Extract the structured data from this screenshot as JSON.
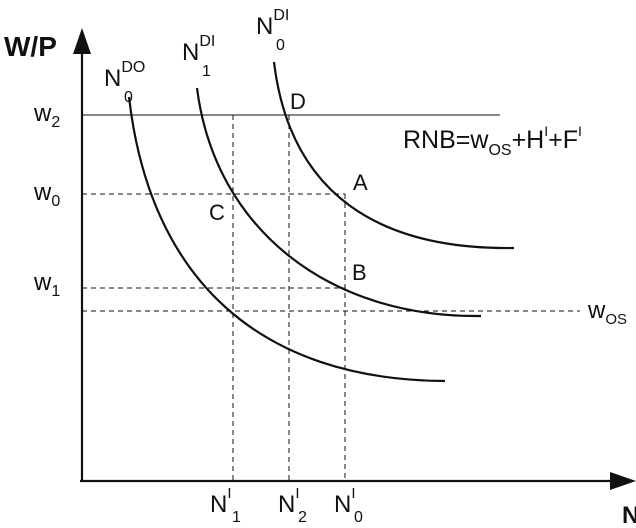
{
  "axes": {
    "y_label": "W/P",
    "x_label": "N"
  },
  "wage_levels": {
    "w2": {
      "base": "w",
      "sub": "2"
    },
    "w0": {
      "base": "w",
      "sub": "0"
    },
    "w1": {
      "base": "w",
      "sub": "1"
    },
    "wos": {
      "base": "w",
      "sub": "OS"
    }
  },
  "employment_levels": {
    "n1": {
      "base": "N",
      "sup": "I",
      "sub": "1"
    },
    "n2": {
      "base": "N",
      "sup": "I",
      "sub": "2"
    },
    "n0": {
      "base": "N",
      "sup": "I",
      "sub": "0"
    }
  },
  "curves": {
    "nd0_do": {
      "base": "N",
      "sup": "DO",
      "sub": "0"
    },
    "nd1_di": {
      "base": "N",
      "sup": "DI",
      "sub": "1"
    },
    "nd0_di": {
      "base": "N",
      "sup": "DI",
      "sub": "0"
    }
  },
  "points": {
    "a": "A",
    "b": "B",
    "c": "C",
    "d": "D"
  },
  "rnb_label": {
    "prefix": "RNB=w",
    "wos_sub": "OS",
    "plus_h": "+H",
    "h_sup": "I",
    "plus_f": "+F",
    "f_sup": "I"
  }
}
